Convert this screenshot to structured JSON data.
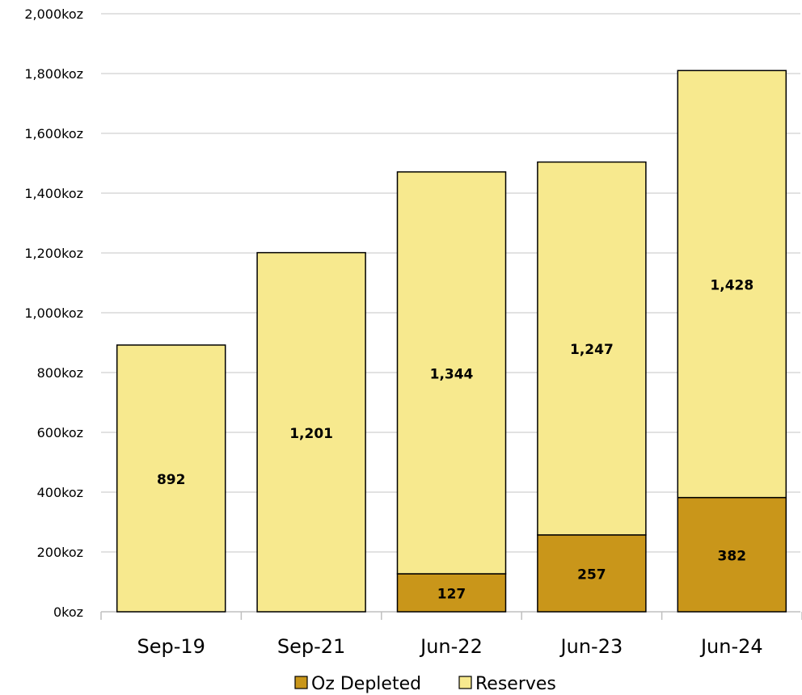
{
  "chart_data": {
    "type": "bar",
    "stacked": true,
    "categories": [
      "Sep-19",
      "Sep-21",
      "Jun-22",
      "Jun-23",
      "Jun-24"
    ],
    "series": [
      {
        "name": "Oz Depleted",
        "values": [
          0,
          0,
          127,
          257,
          382
        ],
        "labels": [
          "",
          "",
          "127",
          "257",
          "382"
        ],
        "color": "#C9961A"
      },
      {
        "name": "Reserves",
        "values": [
          892,
          1201,
          1344,
          1247,
          1428
        ],
        "labels": [
          "892",
          "1,201",
          "1,344",
          "1,247",
          "1,428"
        ],
        "color": "#F7E98E"
      }
    ],
    "ylim": [
      0,
      2000
    ],
    "y_ticks": [
      0,
      200,
      400,
      600,
      800,
      1000,
      1200,
      1400,
      1600,
      1800,
      2000
    ],
    "y_tick_labels": [
      "0koz",
      "200koz",
      "400koz",
      "600koz",
      "800koz",
      "1,000koz",
      "1,200koz",
      "1,400koz",
      "1,600koz",
      "1,800koz",
      "2,000koz"
    ],
    "title": "",
    "xlabel": "",
    "ylabel": "",
    "grid": true,
    "legend_position": "bottom",
    "bar_outline_color": "#000000",
    "grid_color": "#D9D9D9"
  }
}
